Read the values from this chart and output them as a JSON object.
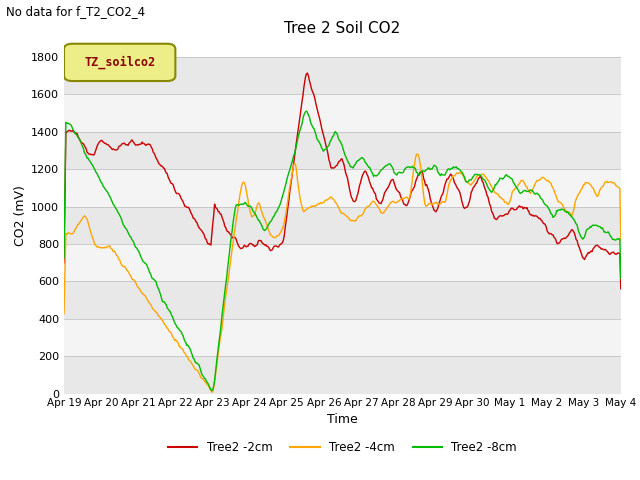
{
  "title": "Tree 2 Soil CO2",
  "subtitle": "No data for f_T2_CO2_4",
  "ylabel": "CO2 (mV)",
  "xlabel": "Time",
  "legend_label": "TZ_soilco2",
  "ylim": [
    0,
    1900
  ],
  "yticks": [
    0,
    200,
    400,
    600,
    800,
    1000,
    1200,
    1400,
    1600,
    1800
  ],
  "xtick_labels": [
    "Apr 19",
    "Apr 20",
    "Apr 21",
    "Apr 22",
    "Apr 23",
    "Apr 24",
    "Apr 25",
    "Apr 26",
    "Apr 27",
    "Apr 28",
    "Apr 29",
    "Apr 30",
    "May 1",
    "May 2",
    "May 3",
    "May 4"
  ],
  "line_colors": {
    "2cm": "#cc0000",
    "4cm": "#ffa500",
    "8cm": "#00bb00"
  },
  "line_labels": {
    "2cm": "Tree2 -2cm",
    "4cm": "Tree2 -4cm",
    "8cm": "Tree2 -8cm"
  },
  "bg_color": "#ffffff",
  "band_colors": [
    "#e8e8e8",
    "#f4f4f4"
  ],
  "legend_box_facecolor": "#eeee88",
  "legend_box_edgecolor": "#888800",
  "legend_text_color": "#880000"
}
